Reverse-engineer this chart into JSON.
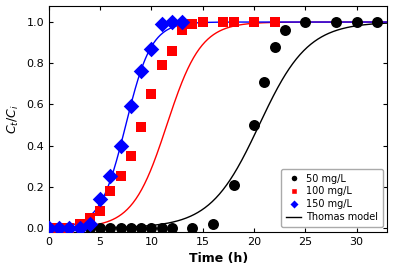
{
  "title": "",
  "xlabel": "Time (h)",
  "ylabel": "$C_t/C_i$",
  "xlim": [
    0,
    33
  ],
  "ylim": [
    -0.02,
    1.08
  ],
  "xticks": [
    0,
    5,
    10,
    15,
    20,
    25,
    30
  ],
  "yticks": [
    0.0,
    0.2,
    0.4,
    0.6,
    0.8,
    1.0
  ],
  "series": [
    {
      "label": "50 mg/L",
      "color": "black",
      "marker": "o",
      "marker_size": 5,
      "thomas_k": 0.42,
      "thomas_t0": 20.5,
      "data_x": [
        0,
        1,
        2,
        3,
        4,
        5,
        6,
        7,
        8,
        9,
        10,
        11,
        12,
        14,
        16,
        18,
        20,
        21,
        22,
        23,
        25,
        28,
        30,
        32
      ],
      "data_y": [
        0.0,
        0.0,
        0.0,
        0.0,
        0.0,
        0.0,
        0.0,
        0.0,
        0.0,
        0.0,
        0.0,
        0.0,
        0.0,
        0.0,
        0.02,
        0.21,
        0.5,
        0.71,
        0.88,
        0.96,
        1.0,
        1.0,
        1.0,
        1.0
      ]
    },
    {
      "label": "100 mg/L",
      "color": "red",
      "marker": "s",
      "marker_size": 5,
      "thomas_k": 0.6,
      "thomas_t0": 11.5,
      "data_x": [
        0,
        1,
        2,
        3,
        4,
        5,
        6,
        7,
        8,
        9,
        10,
        11,
        12,
        13,
        14,
        15,
        17,
        18,
        20,
        22
      ],
      "data_y": [
        0.0,
        0.0,
        0.0,
        0.02,
        0.05,
        0.08,
        0.18,
        0.25,
        0.35,
        0.49,
        0.65,
        0.79,
        0.86,
        0.96,
        0.99,
        1.0,
        1.0,
        1.0,
        1.0,
        1.0
      ]
    },
    {
      "label": "150 mg/L",
      "color": "blue",
      "marker": "D",
      "marker_size": 5,
      "thomas_k": 0.8,
      "thomas_t0": 7.5,
      "data_x": [
        0,
        1,
        2,
        3,
        4,
        5,
        6,
        7,
        8,
        9,
        10,
        11,
        12,
        13
      ],
      "data_y": [
        0.0,
        0.0,
        0.0,
        0.0,
        0.02,
        0.14,
        0.25,
        0.4,
        0.59,
        0.76,
        0.87,
        0.99,
        1.0,
        1.0
      ]
    }
  ],
  "legend_loc": "lower right",
  "thomas_label": "Thomas model",
  "thomas_color": "black",
  "background_color": "#ffffff"
}
